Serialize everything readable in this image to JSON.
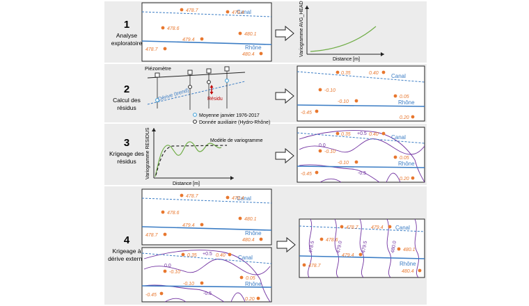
{
  "steps": [
    {
      "num": "1",
      "title_lines": [
        "Analyse",
        "exploratoire"
      ]
    },
    {
      "num": "2",
      "title_lines": [
        "Calcul des",
        "résidus"
      ]
    },
    {
      "num": "3",
      "title_lines": [
        "Krigeage des",
        "résidus"
      ]
    },
    {
      "num": "4",
      "title_lines": [
        "Krigeage à",
        "dérive externe"
      ]
    }
  ],
  "labels": {
    "canal": "Canal",
    "rhone": "Rhône"
  },
  "heads": [
    "478.7",
    "479.4",
    "478.6",
    "480.1",
    "479.4",
    "478.7",
    "480.4"
  ],
  "residuals": [
    "0.35",
    "0.40",
    "-0.10",
    "0.05",
    "-0.10",
    "-0.45",
    "0.20"
  ],
  "contours_residual": [
    "+0.5",
    "0.0",
    "-0.5"
  ],
  "contours_head": [
    "478.5",
    "479.0",
    "479.5",
    "480.0"
  ],
  "variogram1": {
    "ylabel": "Variogramme AVG_HEAD",
    "xlabel": "Distance [m]"
  },
  "step2": {
    "piezometre": "Piézomètre",
    "derive": "Dérive (trend)",
    "residu": "Résidu",
    "legend": [
      "Moyenne janvier 1976-2017",
      "Donnée auxiliaire (Hydro-Rhône)"
    ]
  },
  "variogram3": {
    "ylabel": "Variogramme RESIDUS",
    "xlabel": "Distance [m]",
    "model": "Modèle de variogramme"
  },
  "colors": {
    "orange": "#e8772e",
    "blue": "#3a7cc4",
    "purple": "#7030a0",
    "green": "#70ad47",
    "band": "#ececec"
  }
}
